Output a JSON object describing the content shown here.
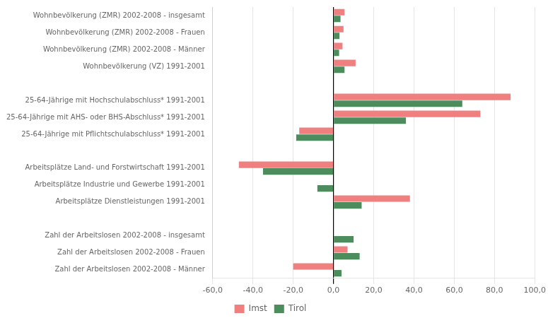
{
  "chart_data": {
    "type": "bar",
    "orientation": "horizontal",
    "categories": [
      "Wohnbevölkerung (ZMR) 2002-2008 - insgesamt",
      "Wohnbevölkerung (ZMR) 2002-2008 - Frauen",
      "Wohnbevölkerung (ZMR) 2002-2008 - Männer",
      "Wohnbevölkerung (VZ) 1991-2001",
      null,
      "25-64-Jährige mit Hochschulabschluss* 1991-2001",
      "25-64-Jährige mit AHS- oder BHS-Abschluss* 1991-2001",
      "25-64-Jährige mit Pflichtschulabschluss* 1991-2001",
      null,
      "Arbeitsplätze Land- und Forstwirtschaft 1991-2001",
      "Arbeitsplätze Industrie und Gewerbe 1991-2001",
      "Arbeitsplätze Dienstleistungen 1991-2001",
      null,
      "Zahl der Arbeitslosen 2002-2008 - insgesamt",
      "Zahl der Arbeitslosen 2002-2008 - Frauen",
      "Zahl der Arbeitslosen 2002-2008 - Männer"
    ],
    "series": [
      {
        "name": "Imst",
        "color": "#f08080",
        "values": [
          5.5,
          5.0,
          4.5,
          11.0,
          null,
          88.0,
          73.0,
          -17.0,
          null,
          -47.0,
          0.0,
          38.0,
          null,
          0.0,
          7.0,
          -20.0
        ]
      },
      {
        "name": "Tirol",
        "color": "#4d8c5c",
        "values": [
          3.5,
          3.0,
          2.8,
          5.5,
          null,
          64.0,
          36.0,
          -18.5,
          null,
          -35.0,
          -8.0,
          14.0,
          null,
          10.0,
          13.0,
          4.0
        ]
      }
    ],
    "xlim": [
      -60,
      100
    ],
    "xticks": [
      {
        "value": -60,
        "label": "-60,0"
      },
      {
        "value": -40,
        "label": "-40,0"
      },
      {
        "value": -20,
        "label": "-20,0"
      },
      {
        "value": 0,
        "label": "0,0"
      },
      {
        "value": 20,
        "label": "20,0"
      },
      {
        "value": 40,
        "label": "40,0"
      },
      {
        "value": 60,
        "label": "60,0"
      },
      {
        "value": 80,
        "label": "80,0"
      },
      {
        "value": 100,
        "label": "100,0"
      }
    ],
    "grid": true,
    "legend": "bottom"
  }
}
